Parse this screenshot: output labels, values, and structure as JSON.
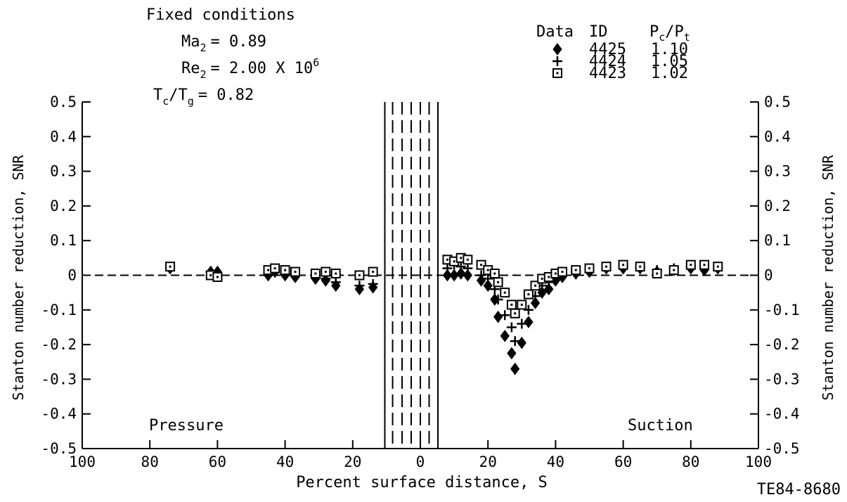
{
  "chart_data": {
    "type": "scatter",
    "title": "",
    "xlabel": "Percent surface distance, S",
    "ylabel": "Stanton number reduction, SNR",
    "xlim": [
      -100,
      100
    ],
    "ylim": [
      -0.5,
      0.5
    ],
    "x_ticks": [
      -100,
      -80,
      -60,
      -40,
      -20,
      0,
      20,
      40,
      60,
      80,
      100
    ],
    "x_tick_labels": [
      "100",
      "80",
      "60",
      "40",
      "20",
      "0",
      "20",
      "40",
      "60",
      "80",
      "100"
    ],
    "y_ticks": [
      0.5,
      0.4,
      0.3,
      0.2,
      0.1,
      0,
      -0.1,
      -0.2,
      -0.3,
      -0.4,
      -0.5
    ],
    "y_tick_labels": [
      "0.5",
      "0.4",
      "0.3",
      "0.2",
      "0.1",
      "0",
      "-0.1",
      "-0.2",
      "-0.3",
      "-0.4",
      "-0.5"
    ],
    "grid": false,
    "zero_line": "dashed",
    "region_labels": {
      "left": "Pressure",
      "right": "Suction"
    },
    "fixed_conditions": {
      "heading": "Fixed conditions",
      "ma_label": "Ma",
      "ma_sub": "2",
      "ma_value": "= 0.89",
      "re_label": "Re",
      "re_sub": "2",
      "re_value": "= 2.00 X 10",
      "re_exp": "6",
      "tc_label": "T",
      "tc_sub": "c",
      "tg_label": "/T",
      "tg_sub": "g",
      "tctg_value": "= 0.82"
    },
    "legend": {
      "position": "top-right",
      "header_data": "Data",
      "header_id": "ID",
      "header_ratio_p": "P",
      "header_ratio_c": "c",
      "header_ratio_pt": "/P",
      "header_ratio_t": "t",
      "rows": [
        {
          "marker": "diamond",
          "id": "4425",
          "ratio": "1.10"
        },
        {
          "marker": "plus",
          "id": "4424",
          "ratio": "1.05"
        },
        {
          "marker": "square-dot",
          "id": "4423",
          "ratio": "1.02"
        }
      ]
    },
    "reference_label": "TE84-8680",
    "cooling_hole_lines": {
      "solid": [
        -10.5,
        5.2
      ],
      "dashed": [
        -8.2,
        -5.4,
        -2.7,
        0,
        2.6
      ]
    },
    "series": [
      {
        "name": "4425",
        "marker": "diamond",
        "points": [
          [
            -74,
            0.02
          ],
          [
            -62,
            0.01
          ],
          [
            -60,
            0.01
          ],
          [
            -45,
            0
          ],
          [
            -43,
            0.01
          ],
          [
            -40,
            0
          ],
          [
            -37,
            -0.005
          ],
          [
            -31,
            -0.01
          ],
          [
            -28,
            -0.015
          ],
          [
            -25,
            -0.03
          ],
          [
            -18,
            -0.04
          ],
          [
            -14,
            -0.035
          ],
          [
            8,
            0
          ],
          [
            10,
            0
          ],
          [
            12,
            0.005
          ],
          [
            14,
            0
          ],
          [
            18,
            -0.015
          ],
          [
            20,
            -0.03
          ],
          [
            22,
            -0.07
          ],
          [
            23,
            -0.12
          ],
          [
            25,
            -0.175
          ],
          [
            27,
            -0.225
          ],
          [
            28,
            -0.27
          ],
          [
            30,
            -0.195
          ],
          [
            32,
            -0.135
          ],
          [
            34,
            -0.08
          ],
          [
            36,
            -0.05
          ],
          [
            38,
            -0.04
          ],
          [
            40,
            -0.015
          ],
          [
            42,
            -0.005
          ],
          [
            46,
            0.005
          ],
          [
            50,
            0.01
          ],
          [
            55,
            0.02
          ],
          [
            60,
            0.02
          ],
          [
            65,
            0.02
          ],
          [
            70,
            0.01
          ],
          [
            75,
            0.015
          ],
          [
            80,
            0.02
          ],
          [
            84,
            0.015
          ],
          [
            88,
            0.02
          ]
        ]
      },
      {
        "name": "4424",
        "marker": "plus",
        "points": [
          [
            -74,
            0.02
          ],
          [
            -62,
            0.01
          ],
          [
            -60,
            0.005
          ],
          [
            -45,
            0.005
          ],
          [
            -43,
            0.01
          ],
          [
            -40,
            0.005
          ],
          [
            -37,
            0
          ],
          [
            -31,
            -0.005
          ],
          [
            -28,
            -0.01
          ],
          [
            -25,
            -0.02
          ],
          [
            -18,
            -0.03
          ],
          [
            -14,
            -0.025
          ],
          [
            8,
            0.02
          ],
          [
            10,
            0.03
          ],
          [
            12,
            0.025
          ],
          [
            14,
            0.02
          ],
          [
            18,
            0
          ],
          [
            20,
            -0.01
          ],
          [
            22,
            -0.04
          ],
          [
            23,
            -0.07
          ],
          [
            25,
            -0.115
          ],
          [
            27,
            -0.15
          ],
          [
            28,
            -0.19
          ],
          [
            30,
            -0.14
          ],
          [
            32,
            -0.1
          ],
          [
            34,
            -0.06
          ],
          [
            36,
            -0.03
          ],
          [
            38,
            -0.02
          ],
          [
            40,
            0
          ],
          [
            42,
            0.005
          ],
          [
            46,
            0.01
          ],
          [
            50,
            0.015
          ],
          [
            55,
            0.02
          ],
          [
            60,
            0.025
          ],
          [
            65,
            0.02
          ],
          [
            70,
            0.015
          ],
          [
            75,
            0.02
          ],
          [
            80,
            0.025
          ],
          [
            84,
            0.02
          ],
          [
            88,
            0.02
          ]
        ]
      },
      {
        "name": "4423",
        "marker": "square-dot",
        "points": [
          [
            -74,
            0.025
          ],
          [
            -62,
            0
          ],
          [
            -60,
            -0.005
          ],
          [
            -45,
            0.015
          ],
          [
            -43,
            0.02
          ],
          [
            -40,
            0.015
          ],
          [
            -37,
            0.01
          ],
          [
            -31,
            0.005
          ],
          [
            -28,
            0.01
          ],
          [
            -25,
            0.005
          ],
          [
            -18,
            0
          ],
          [
            -14,
            0.01
          ],
          [
            8,
            0.045
          ],
          [
            10,
            0.04
          ],
          [
            12,
            0.05
          ],
          [
            14,
            0.045
          ],
          [
            18,
            0.03
          ],
          [
            20,
            0.015
          ],
          [
            22,
            0.005
          ],
          [
            23,
            -0.02
          ],
          [
            25,
            -0.05
          ],
          [
            27,
            -0.085
          ],
          [
            28,
            -0.11
          ],
          [
            30,
            -0.085
          ],
          [
            32,
            -0.055
          ],
          [
            34,
            -0.03
          ],
          [
            36,
            -0.01
          ],
          [
            38,
            -0.005
          ],
          [
            40,
            0.005
          ],
          [
            42,
            0.01
          ],
          [
            46,
            0.015
          ],
          [
            50,
            0.02
          ],
          [
            55,
            0.025
          ],
          [
            60,
            0.03
          ],
          [
            65,
            0.025
          ],
          [
            70,
            0.005
          ],
          [
            75,
            0.015
          ],
          [
            80,
            0.03
          ],
          [
            84,
            0.03
          ],
          [
            88,
            0.025
          ]
        ]
      }
    ]
  }
}
